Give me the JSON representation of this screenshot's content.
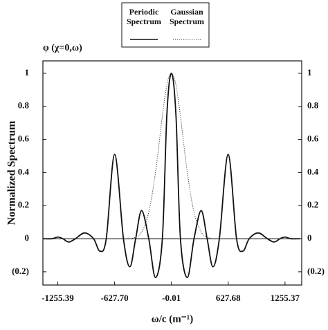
{
  "chart_data": {
    "type": "line",
    "title": "φ (χ=0,ω)",
    "y_label": "Normalized Spectrum",
    "x_label": "ω/c (m⁻¹)",
    "x": [
      -1420,
      -1320,
      -1255,
      -1200,
      -1135,
      -1060,
      -960,
      -860,
      -790,
      -720,
      -627,
      -530,
      -459,
      -395,
      -329,
      -250,
      -176,
      -100,
      -50,
      0,
      50,
      100,
      176,
      250,
      329,
      395,
      459,
      530,
      627,
      720,
      790,
      860,
      960,
      1060,
      1135,
      1200,
      1255,
      1320,
      1420
    ],
    "series": [
      {
        "name": "Periodic Spectrum",
        "color": "#111111",
        "style": "solid",
        "values": [
          0,
          0,
          0.01,
          0,
          -0.02,
          0,
          0.035,
          0,
          -0.075,
          0,
          0.51,
          0,
          -0.17,
          0,
          0.17,
          0,
          -0.235,
          0,
          0.75,
          1,
          0.75,
          0,
          -0.235,
          0,
          0.17,
          0,
          -0.17,
          0,
          0.51,
          0,
          -0.075,
          0,
          0.035,
          0,
          -0.02,
          0,
          0.01,
          0,
          0
        ]
      },
      {
        "name": "Gaussian Spectrum",
        "color": "#333333",
        "style": "dotted",
        "values": [
          0,
          0,
          0,
          0,
          0,
          0,
          0,
          0,
          0,
          0,
          0,
          0,
          0,
          0.01,
          0.04,
          0.16,
          0.4,
          0.74,
          0.93,
          1,
          0.93,
          0.74,
          0.4,
          0.16,
          0.04,
          0.01,
          0,
          0,
          0,
          0,
          0,
          0,
          0,
          0,
          0,
          0,
          0,
          0,
          0
        ]
      }
    ],
    "xlim": [
      -1420,
      1440
    ],
    "xticks": [
      -1255.39,
      {
        "value": -627.7,
        "label": "-627.70"
      },
      -0.01,
      627.68,
      1255.37
    ],
    "ylim": [
      -0.28,
      1.075
    ],
    "yticks": [
      {
        "value": -0.2,
        "label": "(0.2)"
      },
      0,
      0.2,
      0.4,
      0.6,
      0.8,
      1
    ],
    "y2lim": [
      -0.28,
      1.075
    ],
    "y2ticks": [
      {
        "value": -0.2,
        "label": "(0.2)"
      },
      0,
      0.2,
      0.4,
      0.6,
      0.8,
      1
    ],
    "legend": "top"
  }
}
